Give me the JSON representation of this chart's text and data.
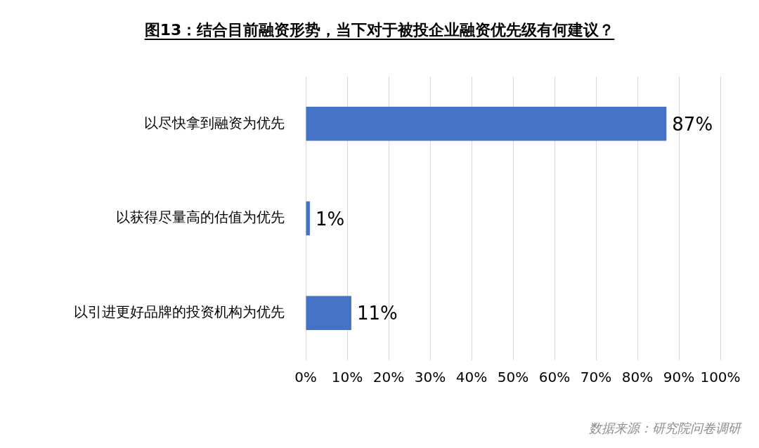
{
  "chart_data": {
    "type": "bar",
    "orientation": "horizontal",
    "title": "图13：结合目前融资形势，当下对于被投企业融资优先级有何建议？",
    "categories": [
      "以尽快拿到融资为优先",
      "以获得尽量高的估值为优先",
      "以引进更好品牌的投资机构为优先"
    ],
    "values": [
      87,
      1,
      11
    ],
    "color": "#4472c4",
    "value_labels": [
      "87%",
      "1%",
      "11%"
    ],
    "xlim": [
      0,
      100
    ],
    "xticks": [
      {
        "value": 0,
        "label": "0%"
      },
      {
        "value": 10,
        "label": "10%"
      },
      {
        "value": 20,
        "label": "20%"
      },
      {
        "value": 30,
        "label": "30%"
      },
      {
        "value": 40,
        "label": "40%"
      },
      {
        "value": 50,
        "label": "50%"
      },
      {
        "value": 60,
        "label": "60%"
      },
      {
        "value": 70,
        "label": "70%"
      },
      {
        "value": 80,
        "label": "80%"
      },
      {
        "value": 90,
        "label": "90%"
      },
      {
        "value": 100,
        "label": "100%"
      }
    ],
    "grid": "x",
    "legend": false,
    "annotations": [
      "数据来源：研究院问卷调研"
    ]
  }
}
